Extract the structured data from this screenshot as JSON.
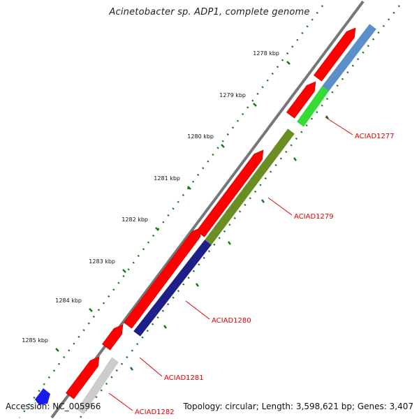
{
  "title": "Acinetobacter sp. ADP1, complete genome",
  "footer": {
    "accession": "Accession: NC_005966",
    "summary": "Topology: circular; Length: 3,598,621 bp; Genes: 3,407"
  },
  "ticks": [
    {
      "label": "1278 kbp"
    },
    {
      "label": "1279 kbp"
    },
    {
      "label": "1280 kbp"
    },
    {
      "label": "1281 kbp"
    },
    {
      "label": "1282 kbp"
    },
    {
      "label": "1283 kbp"
    },
    {
      "label": "1284 kbp"
    },
    {
      "label": "1285 kbp"
    }
  ],
  "genes": [
    {
      "name": "ACIAD1277",
      "color": "#33dd33"
    },
    {
      "name": "ACIAD1279",
      "color": "#6b8e23"
    },
    {
      "name": "ACIAD1280",
      "color": "#1f1f8a"
    },
    {
      "name": "ACIAD1281",
      "color": "#ff0000"
    },
    {
      "name": "ACIAD1282",
      "color": "#cccccc"
    }
  ],
  "colors": {
    "backbone": "#888888",
    "cds": "#ff0000",
    "tick": "#117711",
    "label": "#dd0000",
    "blue_block": "#5a8fc7",
    "bottom_blue": "#1a1aee"
  }
}
